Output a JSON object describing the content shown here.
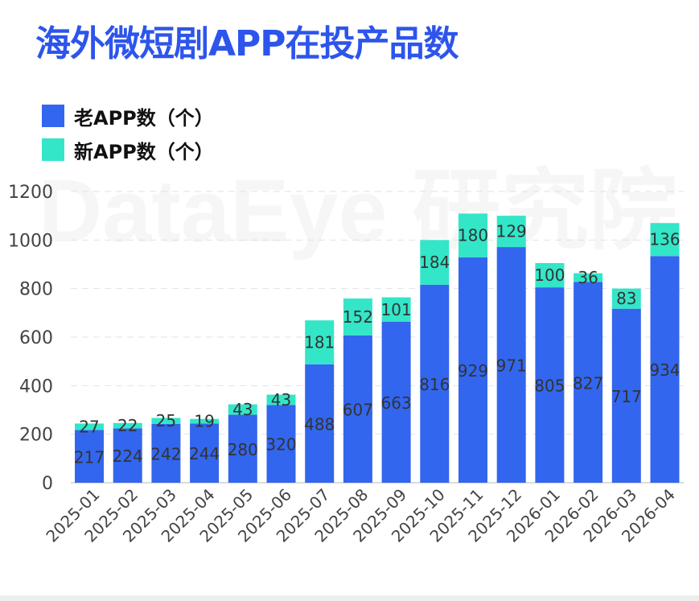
{
  "title": "海外微短剧APP在投产品数",
  "colors": {
    "old": "#3366ee",
    "new": "#33e6c8",
    "title": "#2d55ec"
  },
  "chart_data": {
    "type": "bar",
    "stacked": true,
    "title": "海外微短剧APP在投产品数",
    "categories": [
      "2025-01",
      "2025-02",
      "2025-03",
      "2025-04",
      "2025-05",
      "2025-06",
      "2025-07",
      "2025-08",
      "2025-09",
      "2025-10",
      "2025-11",
      "2025-12",
      "2026-01",
      "2026-02",
      "2026-03",
      "2026-04"
    ],
    "series": [
      {
        "name": "老APP数（个）",
        "color": "#3366ee",
        "values": [
          217,
          224,
          242,
          244,
          280,
          320,
          488,
          607,
          663,
          816,
          929,
          971,
          805,
          827,
          717,
          934
        ]
      },
      {
        "name": "新APP数（个）",
        "color": "#33e6c8",
        "values": [
          27,
          22,
          25,
          19,
          43,
          43,
          181,
          152,
          101,
          184,
          180,
          129,
          100,
          36,
          83,
          136
        ]
      }
    ],
    "yticks": [
      "0",
      "200",
      "400",
      "600",
      "800",
      "1000",
      "1200"
    ],
    "ylim": [
      0,
      1200
    ],
    "grid": true,
    "legend": "top-left",
    "watermark": "DataEye 研究院"
  }
}
